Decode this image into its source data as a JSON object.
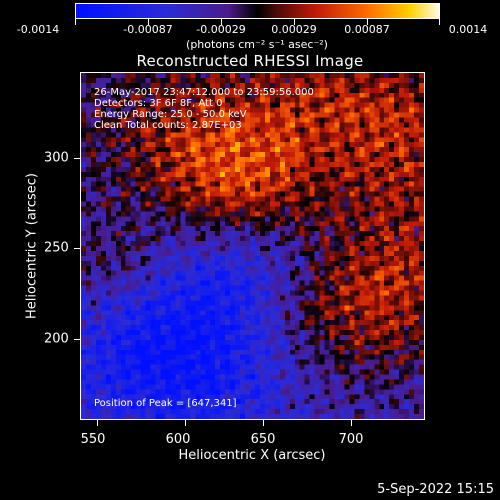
{
  "colorbar": {
    "labels": [
      "-0.0014",
      "-0.00087",
      "-0.00029",
      "0.00029",
      "0.00087",
      "0.0014"
    ],
    "units": "(photons cm⁻² s⁻¹ asec⁻²)"
  },
  "title": "Reconstructed RHESSI Image",
  "info": {
    "line1": "26-May-2017 23:47:12.000 to 23:59:56.000",
    "line2": "Detectors: 3F 6F 8F, Att 0",
    "line3": "Energy Range: 25.0 - 50.0 keV",
    "line4": "Clean     Total counts: 2.87E+03"
  },
  "peak": "Position of Peak = [647,341]",
  "axes": {
    "xlabel": "Heliocentric X (arcsec)",
    "ylabel": "Heliocentric Y (arcsec)",
    "xticks": [
      "550",
      "600",
      "650",
      "700"
    ],
    "yticks": [
      "300",
      "250",
      "200"
    ]
  },
  "footer": "5-Sep-2022 15:15"
}
